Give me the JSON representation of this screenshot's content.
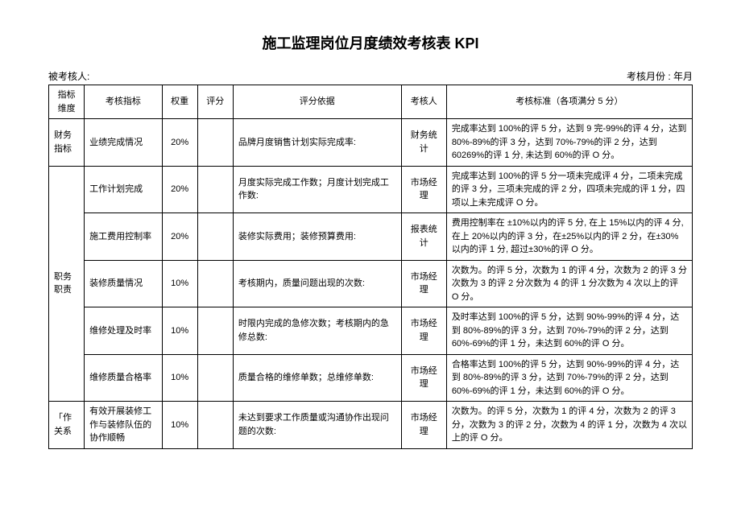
{
  "title": "施工监理岗位月度绩效考核表 KPI",
  "meta": {
    "left": "被考核人:",
    "right": "考核月份 : 年月"
  },
  "headers": {
    "dim": "指标维度",
    "kpi": "考核指标",
    "weight": "权重",
    "score": "评分",
    "basis": "评分依据",
    "rater": "考核人",
    "standard": "考核标准（各项满分 5 分）"
  },
  "groups": [
    {
      "dim": "财务指标",
      "rows": [
        {
          "kpi": "业绩完成情况",
          "weight": "20%",
          "score": "",
          "basis": "品牌月度销售计划实际完成率:",
          "rater": "财务统计",
          "standard": "完成率达到 100%的评 5 分，达到 9 完-99%的评 4 分，达到 80%-89%的评 3 分，达到 70%-79%的评 2 分，达到 60269%的评 1 分, 未达到 60%的评 O 分。"
        }
      ]
    },
    {
      "dim": "职务职责",
      "rows": [
        {
          "kpi": "工作计划完成",
          "weight": "20%",
          "score": "",
          "basis": "月度实际完成工作数；月度计划完成工作数:",
          "rater": "市场经理",
          "standard": "完成率达到 100%的评 5 分一项未完成评 4 分，二项未完成的评 3 分，三项未完成的评 2 分，四项未完成的评 1 分，四项以上未完成评 O 分。"
        },
        {
          "kpi": "施工费用控制率",
          "weight": "20%",
          "score": "",
          "basis": "装修实际费用；装修预算费用:",
          "rater": "报表统计",
          "standard": "费用控制率在 ±10%以内的评 5 分, 在上 15%以内的评 4 分, 在上 20%以内的评 3 分，在±25%以内的评 2 分，在±30%以内的评 1 分, 超过±30%的评 O 分。"
        },
        {
          "kpi": "装修质量情况",
          "weight": "10%",
          "score": "",
          "basis": "考核期内，质量问题出现的次数:",
          "rater": "市场经理",
          "standard": "次数为。的评 5 分，次数为 1 的评 4 分，次数为 2 的评 3 分次数为 3 的评 2 分次数为 4 的评 1 分次数为 4 次以上的评 O 分。"
        },
        {
          "kpi": "维修处理及时率",
          "weight": "10%",
          "score": "",
          "basis": "时限内完成的急修次数；考核期内的急修总数:",
          "rater": "市场经理",
          "standard": "及时率达到 100%的评 5 分，达到 90%-99%的评 4 分，达到 80%-89%的评 3 分，达到 70%-79%的评 2 分，达到 60%-69%的评 1 分，未达到 60%的评 O 分。"
        },
        {
          "kpi": "维修质量合格率",
          "weight": "10%",
          "score": "",
          "basis": "质量合格的维修单数；总维修单数:",
          "rater": "市场经理",
          "standard": "合格率达到 100%的评 5 分，达到 90%-99%的评 4 分，达到 80%-89%的评 3 分，达到 70%-79%的评 2 分，达到 60%-69%的评 1 分，未达到 60%的评 O 分。"
        }
      ]
    },
    {
      "dim": "「作关系",
      "rows": [
        {
          "kpi": "有效开展装修工作与装修队伍的协作顺畅",
          "weight": "10%",
          "score": "",
          "basis": "未达到要求工作质量或沟通协作出现问题的次数:",
          "rater": "市场经理",
          "standard": "次数为。的评 5 分，次数为 1 的评 4 分，次数为 2 的评 3 分，次数为 3 的评 2 分，次数为 4 的评 1 分，次数为 4 次以上的评 O 分。"
        }
      ]
    }
  ]
}
